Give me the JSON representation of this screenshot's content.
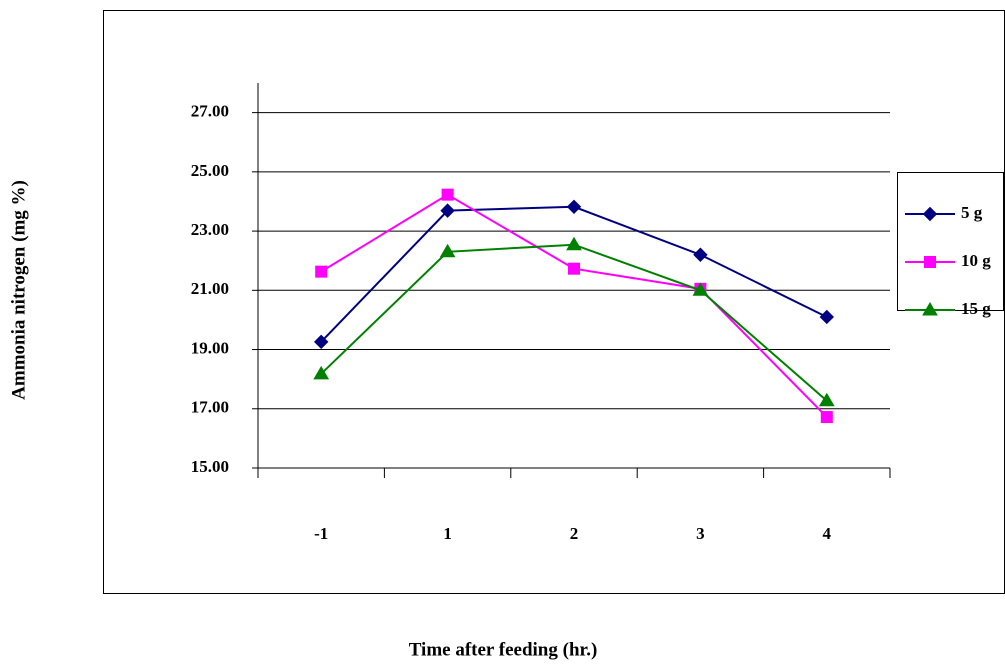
{
  "chart_data": {
    "type": "line",
    "x_label": "Time after feeding (hr.)",
    "y_label": "Ammonia nitrogen (mg %)",
    "categories": [
      "-1",
      "1",
      "2",
      "3",
      "4"
    ],
    "series": [
      {
        "name": "5 g",
        "color": "#000080",
        "marker": "diamond",
        "values": [
          19.26,
          23.69,
          23.82,
          22.2,
          20.1
        ]
      },
      {
        "name": "10 g",
        "color": "#ff00ff",
        "marker": "square",
        "values": [
          21.63,
          24.23,
          21.73,
          21.05,
          16.72
        ]
      },
      {
        "name": "15 g",
        "color": "#008000",
        "marker": "triangle",
        "values": [
          18.18,
          22.3,
          22.54,
          21.0,
          17.27
        ]
      }
    ],
    "ylim": [
      15,
      28
    ],
    "yticks": [
      {
        "value": 15,
        "label": "15.00"
      },
      {
        "value": 17,
        "label": "17.00"
      },
      {
        "value": 19,
        "label": "19.00"
      },
      {
        "value": 21,
        "label": "21.00"
      },
      {
        "value": 23,
        "label": "23.00"
      },
      {
        "value": 25,
        "label": "25.00"
      },
      {
        "value": 27,
        "label": "27.00"
      }
    ],
    "grid": true,
    "legend": "right"
  }
}
